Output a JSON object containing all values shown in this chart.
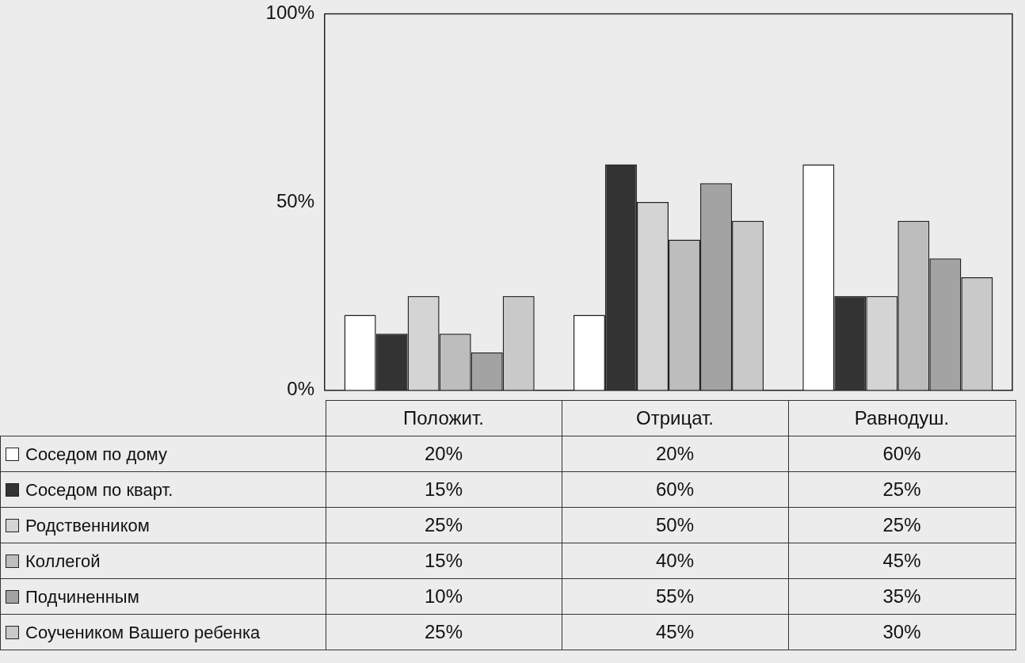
{
  "chart_data": {
    "type": "bar",
    "categories": [
      "Положит.",
      "Отрицат.",
      "Равнодуш."
    ],
    "series": [
      {
        "name": "Соседом по дому",
        "color": "#ffffff",
        "values": [
          20,
          20,
          60
        ],
        "value_labels": [
          "20%",
          "20%",
          "60%"
        ]
      },
      {
        "name": "Соседом по кварт.",
        "color": "#333333",
        "values": [
          15,
          60,
          25
        ],
        "value_labels": [
          "15%",
          "60%",
          "25%"
        ]
      },
      {
        "name": "Родственником",
        "color": "#d4d4d4",
        "values": [
          25,
          50,
          25
        ],
        "value_labels": [
          "25%",
          "50%",
          "25%"
        ]
      },
      {
        "name": "Коллегой",
        "color": "#bdbdbd",
        "values": [
          15,
          40,
          45
        ],
        "value_labels": [
          "15%",
          "40%",
          "45%"
        ]
      },
      {
        "name": "Подчиненным",
        "color": "#a3a3a3",
        "values": [
          10,
          55,
          35
        ],
        "value_labels": [
          "10%",
          "55%",
          "35%"
        ]
      },
      {
        "name": "Соучеником Вашего ребенка",
        "color": "#c9c9c9",
        "values": [
          25,
          45,
          30
        ],
        "value_labels": [
          "25%",
          "45%",
          "30%"
        ]
      }
    ],
    "ylim": [
      0,
      100
    ],
    "yticks": [
      {
        "value": 0,
        "label": "0%"
      },
      {
        "value": 50,
        "label": "50%"
      },
      {
        "value": 100,
        "label": "100%"
      }
    ],
    "grid": false,
    "legend": "bottom left"
  }
}
